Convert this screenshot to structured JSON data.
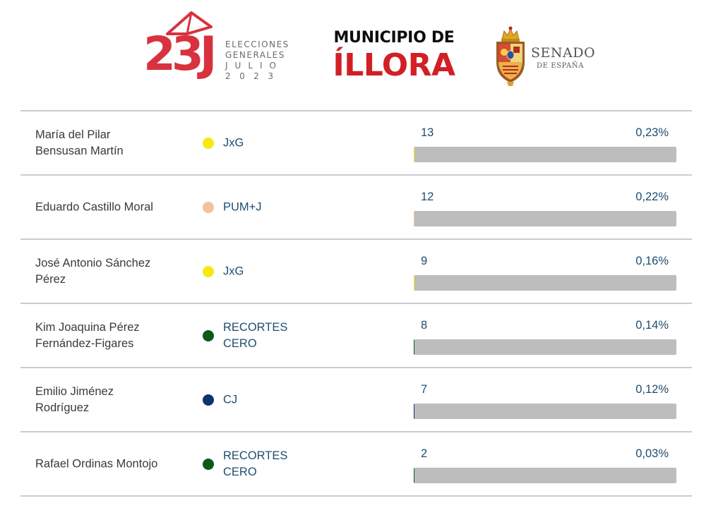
{
  "header": {
    "logo": {
      "number": "23J",
      "lines": [
        "ELECCIONES",
        "GENERALES",
        "JULIO",
        "2023"
      ]
    },
    "municipio_prefix": "MUNICIPIO DE",
    "municipio_name": "ÍLLORA",
    "senado": {
      "title": "SENADO",
      "subtitle": "DE ESPAÑA"
    }
  },
  "colors": {
    "brand_red": "#d8323e",
    "title_red": "#d21f26",
    "text_blue": "#1e4d6e",
    "bar_track": "#bdbdbd"
  },
  "results": [
    {
      "candidate": [
        "María del Pilar",
        "Bensusan Martín"
      ],
      "party": [
        "JxG"
      ],
      "party_color": "#f2ec0c",
      "votes": "13",
      "percent": "0,23%",
      "share": 0.0023
    },
    {
      "candidate": [
        "Eduardo Castillo Moral"
      ],
      "party": [
        "PUM+J"
      ],
      "party_color": "#f3c29c",
      "votes": "12",
      "percent": "0,22%",
      "share": 0.0022
    },
    {
      "candidate": [
        "José Antonio Sánchez",
        "Pérez"
      ],
      "party": [
        "JxG"
      ],
      "party_color": "#f2ec0c",
      "votes": "9",
      "percent": "0,16%",
      "share": 0.0016
    },
    {
      "candidate": [
        "Kim Joaquina Pérez",
        "Fernández-Figares"
      ],
      "party": [
        "RECORTES",
        "CERO"
      ],
      "party_color": "#0b5a19",
      "votes": "8",
      "percent": "0,14%",
      "share": 0.0014
    },
    {
      "candidate": [
        "Emilio Jiménez",
        "Rodríguez"
      ],
      "party": [
        "CJ"
      ],
      "party_color": "#11326e",
      "votes": "7",
      "percent": "0,12%",
      "share": 0.0012
    },
    {
      "candidate": [
        "Rafael Ordinas Montojo"
      ],
      "party": [
        "RECORTES",
        "CERO"
      ],
      "party_color": "#0b5a19",
      "votes": "2",
      "percent": "0,03%",
      "share": 0.0003
    }
  ]
}
